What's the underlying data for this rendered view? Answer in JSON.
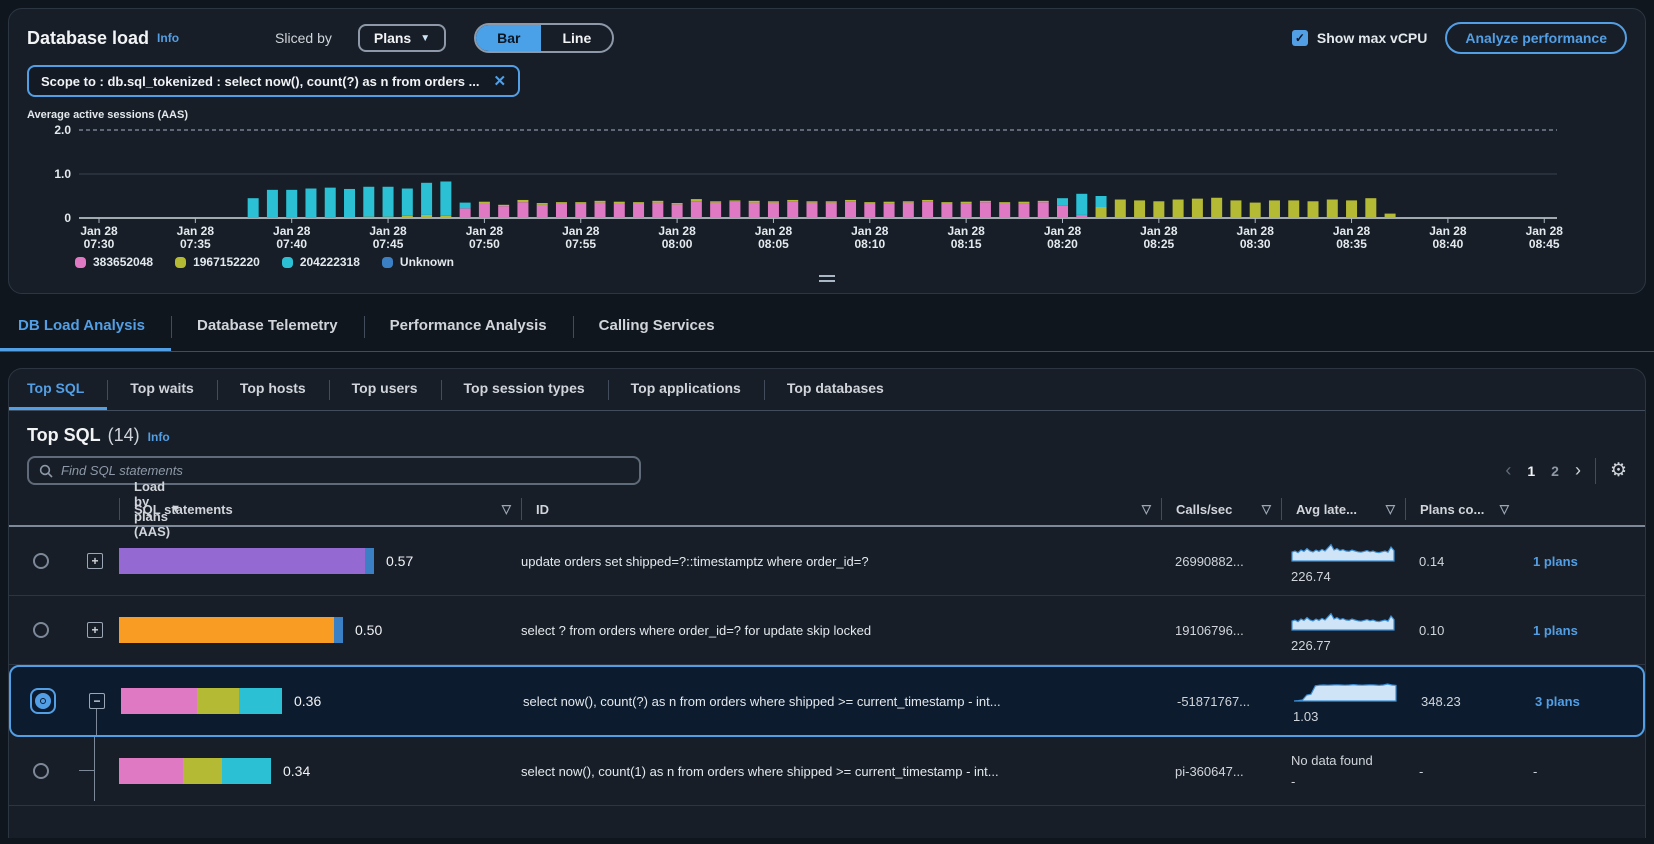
{
  "header": {
    "title": "Database load",
    "info_label": "Info",
    "sliced_by_label": "Sliced by",
    "slice_dropdown": {
      "label": "Plans",
      "caret_icon": "▼"
    },
    "view_toggle": {
      "bar": "Bar",
      "line": "Line",
      "selected": "Bar"
    },
    "show_max_vcpu_label": "Show max vCPU",
    "show_max_vcpu_checked": true,
    "check_icon": "✓",
    "analyze_button": "Analyze performance"
  },
  "scope_chip": {
    "text": "Scope to : db.sql_tokenized : select now(), count(?) as n from orders ...",
    "close_icon": "✕"
  },
  "chart_data": {
    "type": "stacked-bar",
    "title": "Average active sessions (AAS)",
    "x_label_prefix": "Jan 28",
    "x_tick_labels": [
      "07:30",
      "07:35",
      "07:40",
      "07:45",
      "07:50",
      "07:55",
      "08:00",
      "08:05",
      "08:10",
      "08:15",
      "08:20",
      "08:25",
      "08:30",
      "08:35",
      "08:40",
      "08:45"
    ],
    "x_minutes_span": 75,
    "ylim": [
      0,
      2.2
    ],
    "ytick_labels": [
      "0",
      "1.0",
      "2.0"
    ],
    "yticks": [
      0,
      1.0,
      2.0
    ],
    "max_vcpu_line": 2.0,
    "legend": [
      {
        "label": "383652048",
        "color": "#e079c3"
      },
      {
        "label": "1967152220",
        "color": "#b5ba35"
      },
      {
        "label": "204222318",
        "color": "#2bc0d4"
      },
      {
        "label": "Unknown",
        "color": "#3b7fc4"
      }
    ],
    "stack_order_colors": [
      "#e079c3",
      "#b5ba35",
      "#2bc0d4"
    ],
    "bars_minute_pink_yellow_teal": [
      [
        8,
        0,
        0,
        0.45
      ],
      [
        9,
        0,
        0,
        0.64
      ],
      [
        10,
        0,
        0,
        0.64
      ],
      [
        11,
        0,
        0,
        0.67
      ],
      [
        12,
        0,
        0,
        0.69
      ],
      [
        13,
        0,
        0.02,
        0.64
      ],
      [
        14,
        0,
        0.03,
        0.68
      ],
      [
        15,
        0,
        0.03,
        0.68
      ],
      [
        16,
        0,
        0.05,
        0.62
      ],
      [
        17,
        0,
        0.07,
        0.73
      ],
      [
        18,
        0,
        0.05,
        0.78
      ],
      [
        19,
        0.22,
        0,
        0.13
      ],
      [
        20,
        0.33,
        0.04,
        0
      ],
      [
        21,
        0.27,
        0.03,
        0
      ],
      [
        22,
        0.36,
        0.05,
        0
      ],
      [
        23,
        0.3,
        0.04,
        0
      ],
      [
        24,
        0.32,
        0.04,
        0
      ],
      [
        25,
        0.32,
        0.04,
        0
      ],
      [
        26,
        0.35,
        0.04,
        0
      ],
      [
        27,
        0.33,
        0.04,
        0
      ],
      [
        28,
        0.33,
        0.03,
        0
      ],
      [
        29,
        0.35,
        0.04,
        0
      ],
      [
        30,
        0.31,
        0.03,
        0
      ],
      [
        31,
        0.38,
        0.05,
        0
      ],
      [
        32,
        0.35,
        0.03,
        0
      ],
      [
        33,
        0.37,
        0.03,
        0
      ],
      [
        34,
        0.35,
        0.04,
        0
      ],
      [
        35,
        0.35,
        0.03,
        0
      ],
      [
        36,
        0.37,
        0.04,
        0
      ],
      [
        37,
        0.35,
        0.03,
        0
      ],
      [
        38,
        0.35,
        0.03,
        0
      ],
      [
        39,
        0.37,
        0.04,
        0
      ],
      [
        40,
        0.33,
        0.03,
        0
      ],
      [
        41,
        0.34,
        0.03,
        0
      ],
      [
        42,
        0.35,
        0.03,
        0
      ],
      [
        43,
        0.37,
        0.04,
        0
      ],
      [
        44,
        0.33,
        0.03,
        0
      ],
      [
        45,
        0.34,
        0.03,
        0
      ],
      [
        46,
        0.36,
        0.03,
        0
      ],
      [
        47,
        0.33,
        0.03,
        0
      ],
      [
        48,
        0.34,
        0.03,
        0
      ],
      [
        49,
        0.36,
        0.03,
        0
      ],
      [
        50,
        0.28,
        0,
        0.17
      ],
      [
        51,
        0.05,
        0.02,
        0.48
      ],
      [
        52,
        0,
        0.25,
        0.25
      ],
      [
        53,
        0,
        0.42,
        0
      ],
      [
        54,
        0,
        0.4,
        0
      ],
      [
        55,
        0,
        0.38,
        0
      ],
      [
        56,
        0,
        0.42,
        0
      ],
      [
        57,
        0,
        0.44,
        0
      ],
      [
        58,
        0,
        0.46,
        0
      ],
      [
        59,
        0,
        0.4,
        0
      ],
      [
        60,
        0,
        0.35,
        0
      ],
      [
        61,
        0,
        0.4,
        0
      ],
      [
        62,
        0,
        0.4,
        0
      ],
      [
        63,
        0,
        0.38,
        0
      ],
      [
        64,
        0,
        0.42,
        0
      ],
      [
        65,
        0,
        0.4,
        0
      ],
      [
        66,
        0,
        0.45,
        0
      ],
      [
        67,
        0,
        0.1,
        0
      ]
    ]
  },
  "main_tabs": [
    {
      "label": "DB Load Analysis",
      "active": true
    },
    {
      "label": "Database Telemetry",
      "active": false
    },
    {
      "label": "Performance Analysis",
      "active": false
    },
    {
      "label": "Calling Services",
      "active": false
    }
  ],
  "sub_tabs": [
    {
      "label": "Top SQL",
      "active": true
    },
    {
      "label": "Top waits",
      "active": false
    },
    {
      "label": "Top hosts",
      "active": false
    },
    {
      "label": "Top users",
      "active": false
    },
    {
      "label": "Top session types",
      "active": false
    },
    {
      "label": "Top applications",
      "active": false
    },
    {
      "label": "Top databases",
      "active": false
    }
  ],
  "top_sql": {
    "title": "Top SQL",
    "count": "(14)",
    "info_label": "Info",
    "search_placeholder": "Find SQL statements",
    "pagination": {
      "prev_icon": "‹",
      "pages": [
        "1",
        "2"
      ],
      "current": "1",
      "next_icon": "›"
    },
    "gear_icon": "⚙"
  },
  "table": {
    "columns": [
      {
        "label": "Load by plans (AAS)",
        "filter": "filled"
      },
      {
        "label": "SQL statements",
        "filter": "outline"
      },
      {
        "label": "ID",
        "filter": "outline"
      },
      {
        "label": "Calls/sec",
        "filter": "outline"
      },
      {
        "label": "Avg late...",
        "filter": "outline"
      },
      {
        "label": "Plans co...",
        "filter": "outline"
      }
    ],
    "filter_filled_icon": "▼",
    "filter_outline_icon": "▽",
    "rows": [
      {
        "selected": false,
        "tree": "plus",
        "expand_icon": "+",
        "load": 0.57,
        "load_label": "0.57",
        "bar_segments": [
          {
            "color": "#9469d1",
            "frac": 0.965
          },
          {
            "color": "#3b7fc4",
            "frac": 0.035
          }
        ],
        "sql": "update orders set shipped=?::timestamptz where order_id=?",
        "id": "26990882...",
        "spark": [
          0.45,
          0.5,
          0.42,
          0.55,
          0.48,
          0.62,
          0.5,
          0.45,
          0.55,
          0.48,
          0.58,
          0.5,
          0.66,
          0.82,
          0.55,
          0.62,
          0.52,
          0.57,
          0.5,
          0.48,
          0.55,
          0.5,
          0.46,
          0.44,
          0.48,
          0.52,
          0.46,
          0.5,
          0.44,
          0.42,
          0.46,
          0.5,
          0.44,
          0.7,
          0.52
        ],
        "calls": "226.74",
        "avg_latency": "0.14",
        "plans": "1 plans"
      },
      {
        "selected": false,
        "tree": "plus",
        "expand_icon": "+",
        "load": 0.5,
        "load_label": "0.50",
        "bar_segments": [
          {
            "color": "#f89c24",
            "frac": 0.958
          },
          {
            "color": "#3b7fc4",
            "frac": 0.042
          }
        ],
        "sql": "select ? from orders where order_id=? for update skip locked",
        "id": "19106796...",
        "spark": [
          0.45,
          0.5,
          0.42,
          0.55,
          0.48,
          0.62,
          0.5,
          0.45,
          0.55,
          0.48,
          0.58,
          0.5,
          0.66,
          0.82,
          0.55,
          0.62,
          0.52,
          0.57,
          0.5,
          0.48,
          0.55,
          0.5,
          0.46,
          0.44,
          0.48,
          0.52,
          0.46,
          0.5,
          0.44,
          0.42,
          0.46,
          0.5,
          0.44,
          0.7,
          0.52
        ],
        "calls": "226.77",
        "avg_latency": "0.10",
        "plans": "1 plans"
      },
      {
        "selected": true,
        "tree": "minus",
        "expand_icon": "−",
        "load": 0.36,
        "load_label": "0.36",
        "bar_segments": [
          {
            "color": "#e079c3",
            "frac": 0.47
          },
          {
            "color": "#b5ba35",
            "frac": 0.26
          },
          {
            "color": "#2bc0d4",
            "frac": 0.27
          }
        ],
        "sql": "select now(), count(?) as n from orders where shipped >= current_timestamp - int...",
        "id": "-51871767...",
        "spark": [
          0,
          0.02,
          0.05,
          0.3,
          0.34,
          0.76,
          0.79,
          0.8,
          0.79,
          0.8,
          0.81,
          0.8,
          0.79,
          0.8,
          0.82,
          0.8,
          0.79,
          0.8,
          0.81,
          0.8,
          0.78,
          0.8,
          0.85,
          0.8,
          0.78
        ],
        "calls": "1.03",
        "avg_latency": "348.23",
        "plans": "3 plans"
      },
      {
        "selected": false,
        "tree": "branch",
        "expand_icon": "",
        "load": 0.34,
        "load_label": "0.34",
        "bar_segments": [
          {
            "color": "#e079c3",
            "frac": 0.42
          },
          {
            "color": "#b5ba35",
            "frac": 0.26
          },
          {
            "color": "#2bc0d4",
            "frac": 0.32
          }
        ],
        "sql": "select now(), count(1) as n from orders where shipped >= current_timestamp - int...",
        "id": "pi-360647...",
        "spark": null,
        "no_data_text": "No data found",
        "calls": "-",
        "avg_latency": "-",
        "plans": "-"
      }
    ]
  }
}
